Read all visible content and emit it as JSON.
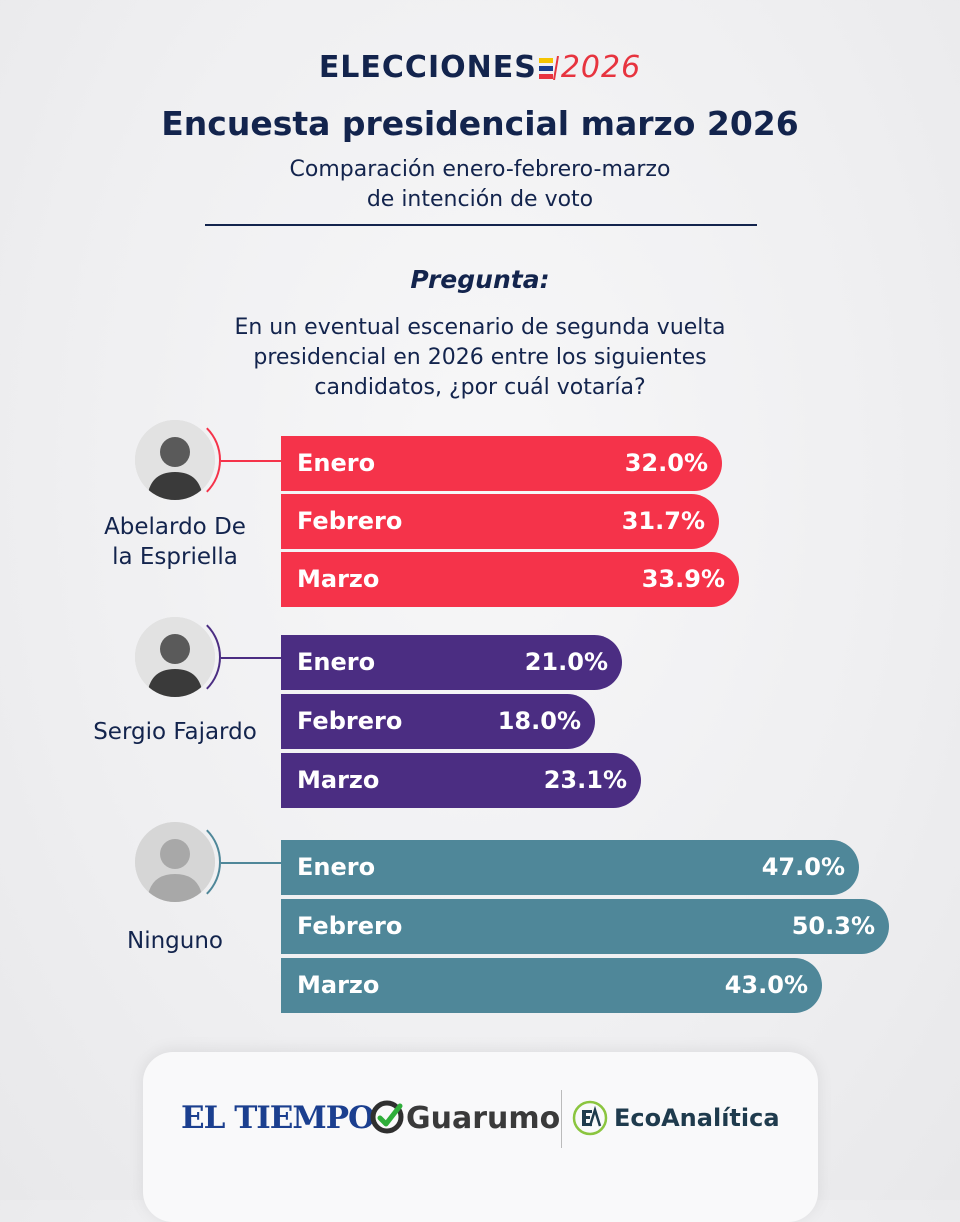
{
  "header": {
    "brand_word": "ELECCIONES",
    "brand_year": "2026",
    "title": "Encuesta presidencial marzo 2026",
    "subtitle_line1": "Comparación enero-febrero-marzo",
    "subtitle_line2": "de intención de voto"
  },
  "question": {
    "label": "Pregunta:",
    "line1": "En un eventual escenario de segunda vuelta",
    "line2": "presidencial en 2026 entre los siguientes",
    "line3": "candidatos, ¿por cuál votaría?"
  },
  "chart_data": {
    "type": "bar",
    "orientation": "horizontal",
    "categories": [
      "Enero",
      "Febrero",
      "Marzo"
    ],
    "value_suffix": "%",
    "series": [
      {
        "name": "Abelardo De la Espriella",
        "name_line1": "Abelardo De",
        "name_line2": "la Espriella",
        "color": "#f5334a",
        "values": [
          32.0,
          31.7,
          33.9
        ],
        "labels": [
          "32.0%",
          "31.7%",
          "33.9%"
        ]
      },
      {
        "name": "Sergio Fajardo",
        "name_line1": "Sergio Fajardo",
        "name_line2": "",
        "color": "#4b2d82",
        "values": [
          21.0,
          18.0,
          23.1
        ],
        "labels": [
          "21.0%",
          "18.0%",
          "23.1%"
        ]
      },
      {
        "name": "Ninguno",
        "name_line1": "Ninguno",
        "name_line2": "",
        "color": "#4f8799",
        "values": [
          47.0,
          50.3,
          43.0
        ],
        "labels": [
          "47.0%",
          "50.3%",
          "43.0%"
        ]
      }
    ]
  },
  "footer": {
    "logo1": "EL TIEMPO",
    "logo2": "Guarumo",
    "logo3": "EcoAnalítica"
  },
  "colors": {
    "navy": "#13244d",
    "brand_red": "#e7343f"
  }
}
